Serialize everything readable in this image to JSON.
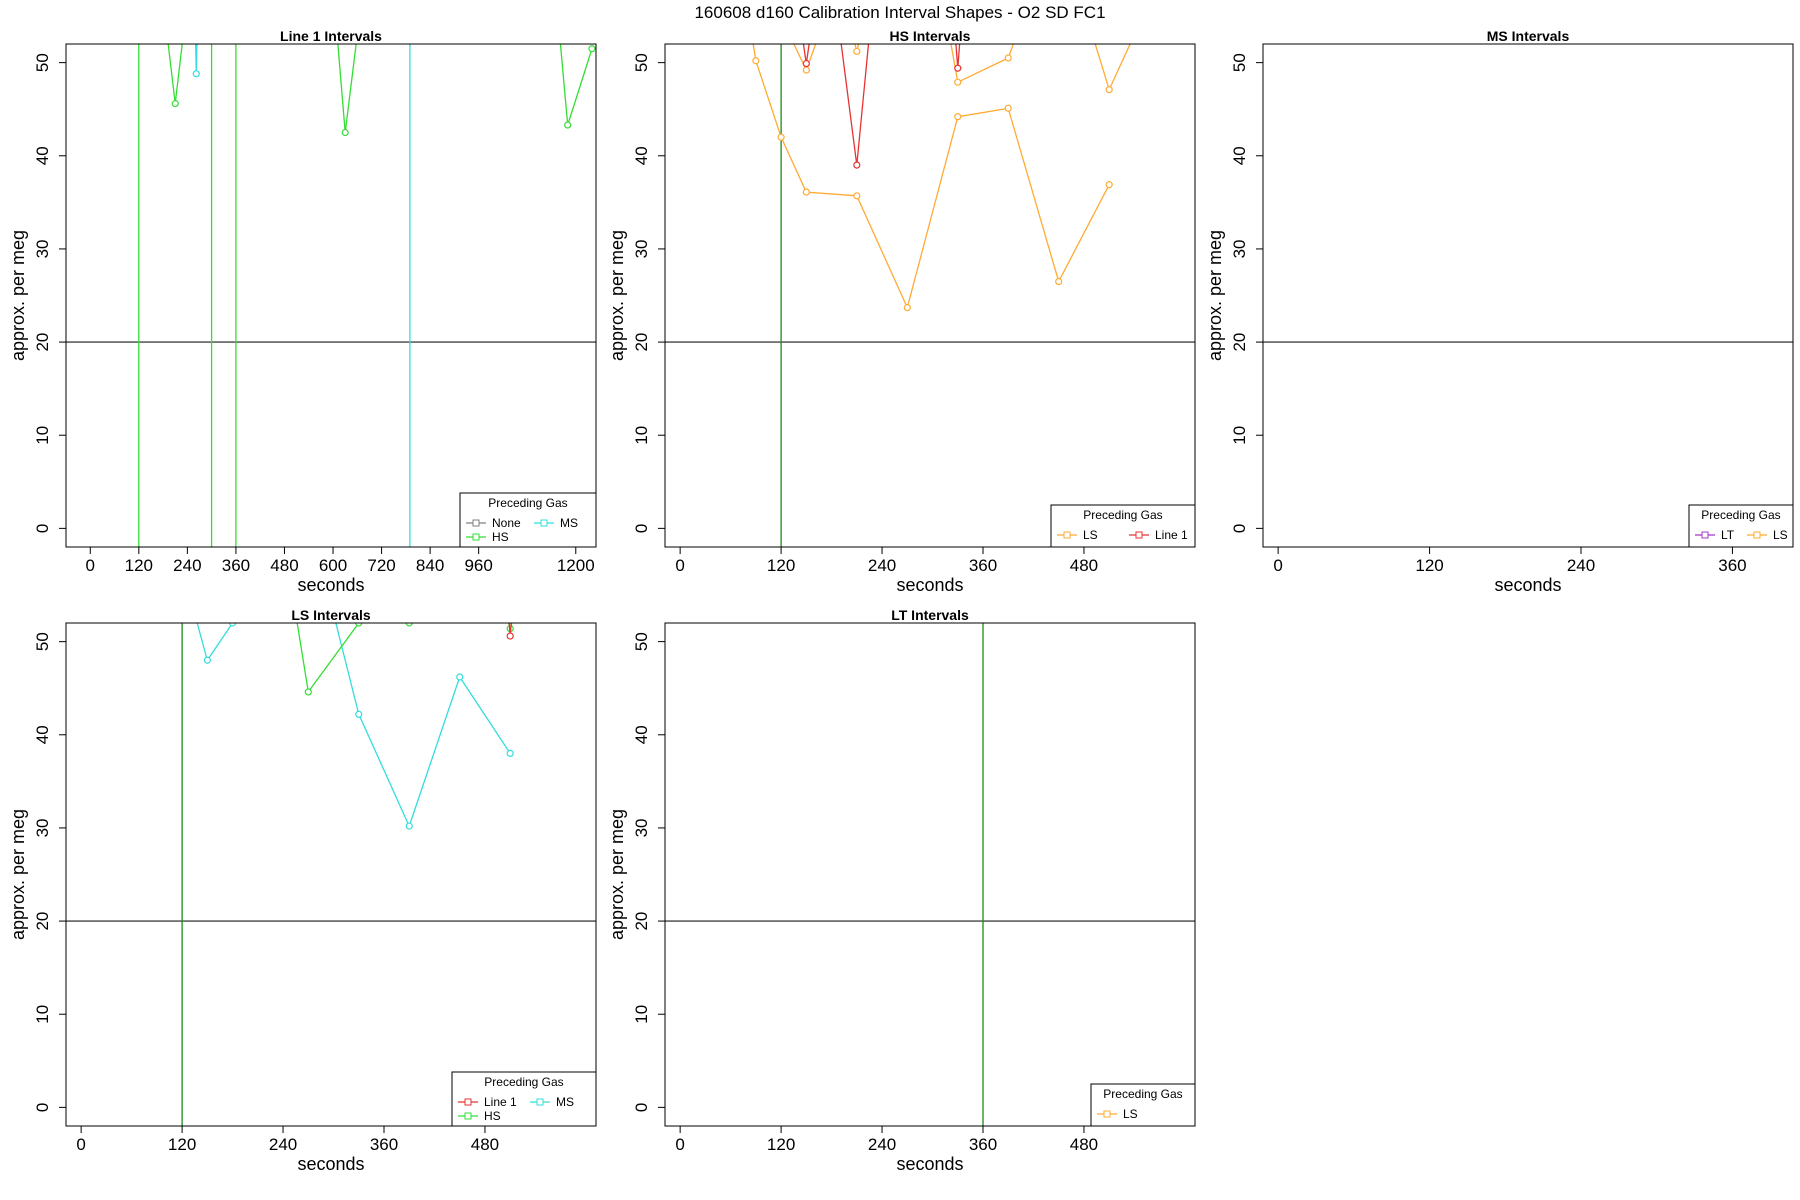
{
  "title": "160608   d160   Calibration Interval Shapes - O2 SD FC1",
  "colors": {
    "None": "#808080",
    "HS": "#33dd33",
    "MS": "#33dddd",
    "LS": "#ffaa33",
    "Line 1": "#e83333",
    "LT": "#aa33cc",
    "hline": "#444444",
    "vline": "#1a8c1a"
  },
  "chart_data": [
    {
      "type": "line",
      "title": "Line 1 Intervals",
      "xlabel": "seconds",
      "ylabel": "approx. per meg",
      "xlim": [
        -60,
        1250
      ],
      "ylim": [
        -2,
        52
      ],
      "xticks": [
        0,
        120,
        240,
        360,
        480,
        600,
        720,
        840,
        960,
        1200
      ],
      "yticks": [
        0,
        10,
        20,
        30,
        40,
        50
      ],
      "hline": 20,
      "vlines": [],
      "legend": {
        "title": "Preceding Gas",
        "entries": [
          "None",
          "MS",
          "HS"
        ],
        "position": "bottom-right"
      },
      "series": [
        {
          "name": "HS",
          "points": [
            [
              120,
              52.5
            ],
            [
              120,
              -10
            ]
          ]
        },
        {
          "name": "HS",
          "points": [
            [
              300,
              52.5
            ],
            [
              300,
              -10
            ]
          ]
        },
        {
          "name": "HS",
          "points": [
            [
              360,
              52.5
            ],
            [
              360,
              -10
            ]
          ]
        },
        {
          "name": "MS",
          "points": [
            [
              790,
              52.5
            ],
            [
              790,
              -10
            ]
          ]
        },
        {
          "name": "HS",
          "points": [
            [
              190,
              53
            ],
            [
              210,
              45.6
            ],
            [
              230,
              53
            ]
          ]
        },
        {
          "name": "MS",
          "points": [
            [
              260,
              53
            ],
            [
              262,
              48.8
            ],
            [
              264,
              53
            ]
          ]
        },
        {
          "name": "HS",
          "points": [
            [
              610,
              53
            ],
            [
              630,
              42.5
            ],
            [
              660,
              53
            ]
          ]
        },
        {
          "name": "HS",
          "points": [
            [
              1160,
              53
            ],
            [
              1180,
              43.3
            ],
            [
              1240,
              51.5
            ]
          ]
        }
      ]
    },
    {
      "type": "line",
      "title": "HS Intervals",
      "xlabel": "seconds",
      "ylabel": "approx. per meg",
      "xlim": [
        -18,
        612
      ],
      "ylim": [
        -2,
        52
      ],
      "xticks": [
        0,
        120,
        240,
        360,
        480
      ],
      "yticks": [
        0,
        10,
        20,
        30,
        40,
        50
      ],
      "hline": 20,
      "vlines": [
        120
      ],
      "legend": {
        "title": "Preceding Gas",
        "entries": [
          "LS",
          "Line 1"
        ],
        "position": "bottom-right"
      },
      "series": [
        {
          "name": "LS",
          "points": [
            [
              85,
              53
            ],
            [
              90,
              50.2
            ],
            [
              120,
              42
            ],
            [
              150,
              36.1
            ],
            [
              210,
              35.7
            ],
            [
              270,
              23.7
            ],
            [
              330,
              44.2
            ],
            [
              390,
              45.1
            ],
            [
              450,
              26.5
            ],
            [
              510,
              36.9
            ]
          ]
        },
        {
          "name": "LS",
          "points": [
            [
              130,
              53
            ],
            [
              150,
              49.2
            ],
            [
              165,
              53
            ]
          ]
        },
        {
          "name": "LS",
          "points": [
            [
              205,
              53
            ],
            [
              210,
              51.2
            ],
            [
              215,
              53
            ]
          ]
        },
        {
          "name": "LS",
          "points": [
            [
              320,
              53
            ],
            [
              330,
              47.9
            ],
            [
              390,
              50.5
            ],
            [
              400,
              53
            ]
          ]
        },
        {
          "name": "LS",
          "points": [
            [
              490,
              53
            ],
            [
              510,
              47.1
            ],
            [
              540,
              53
            ]
          ]
        },
        {
          "name": "Line 1",
          "points": [
            [
              145,
              53
            ],
            [
              150,
              49.9
            ],
            [
              155,
              53
            ]
          ]
        },
        {
          "name": "Line 1",
          "points": [
            [
              190,
              53
            ],
            [
              210,
              39
            ],
            [
              225,
              53
            ]
          ]
        },
        {
          "name": "Line 1",
          "points": [
            [
              327,
              53
            ],
            [
              330,
              49.4
            ],
            [
              333,
              53
            ]
          ]
        }
      ]
    },
    {
      "type": "line",
      "title": "MS Intervals",
      "xlabel": "seconds",
      "ylabel": "approx. per meg",
      "xlim": [
        -12,
        408
      ],
      "ylim": [
        -2,
        52
      ],
      "xticks": [
        0,
        120,
        240,
        360
      ],
      "yticks": [
        0,
        10,
        20,
        30,
        40,
        50
      ],
      "hline": 20,
      "vlines": [],
      "legend": {
        "title": "Preceding Gas",
        "entries": [
          "LT",
          "LS"
        ],
        "position": "bottom-right"
      },
      "series": []
    },
    {
      "type": "line",
      "title": "LS Intervals",
      "xlabel": "seconds",
      "ylabel": "approx. per meg",
      "xlim": [
        -18,
        612
      ],
      "ylim": [
        -2,
        52
      ],
      "xticks": [
        0,
        120,
        240,
        360,
        480
      ],
      "yticks": [
        0,
        10,
        20,
        30,
        40,
        50
      ],
      "hline": 20,
      "vlines": [
        120
      ],
      "legend": {
        "title": "Preceding Gas",
        "entries": [
          "Line 1",
          "MS",
          "HS"
        ],
        "position": "bottom-right"
      },
      "series": [
        {
          "name": "MS",
          "points": [
            [
              135,
              53
            ],
            [
              150,
              48
            ],
            [
              180,
              52
            ],
            [
              182,
              53
            ]
          ]
        },
        {
          "name": "MS",
          "points": [
            [
              300,
              53
            ],
            [
              330,
              42.2
            ],
            [
              390,
              30.2
            ],
            [
              450,
              46.2
            ],
            [
              510,
              38
            ]
          ]
        },
        {
          "name": "HS",
          "points": [
            [
              255,
              53
            ],
            [
              270,
              44.6
            ],
            [
              330,
              52
            ],
            [
              335,
              53
            ]
          ]
        },
        {
          "name": "HS",
          "points": [
            [
              387,
              53
            ],
            [
              390,
              52
            ],
            [
              393,
              53
            ]
          ]
        },
        {
          "name": "HS",
          "points": [
            [
              505,
              53
            ],
            [
              510,
              51.4
            ],
            [
              515,
              53
            ]
          ]
        },
        {
          "name": "Line 1",
          "points": [
            [
              508,
              53
            ],
            [
              510,
              50.6
            ],
            [
              512,
              53
            ]
          ]
        }
      ]
    },
    {
      "type": "line",
      "title": "LT Intervals",
      "xlabel": "seconds",
      "ylabel": "approx. per meg",
      "xlim": [
        -18,
        612
      ],
      "ylim": [
        -2,
        52
      ],
      "xticks": [
        0,
        120,
        240,
        360,
        480
      ],
      "yticks": [
        0,
        10,
        20,
        30,
        40,
        50
      ],
      "hline": 20,
      "vlines": [
        360
      ],
      "legend": {
        "title": "Preceding Gas",
        "entries": [
          "LS"
        ],
        "position": "bottom-right"
      },
      "series": []
    }
  ]
}
